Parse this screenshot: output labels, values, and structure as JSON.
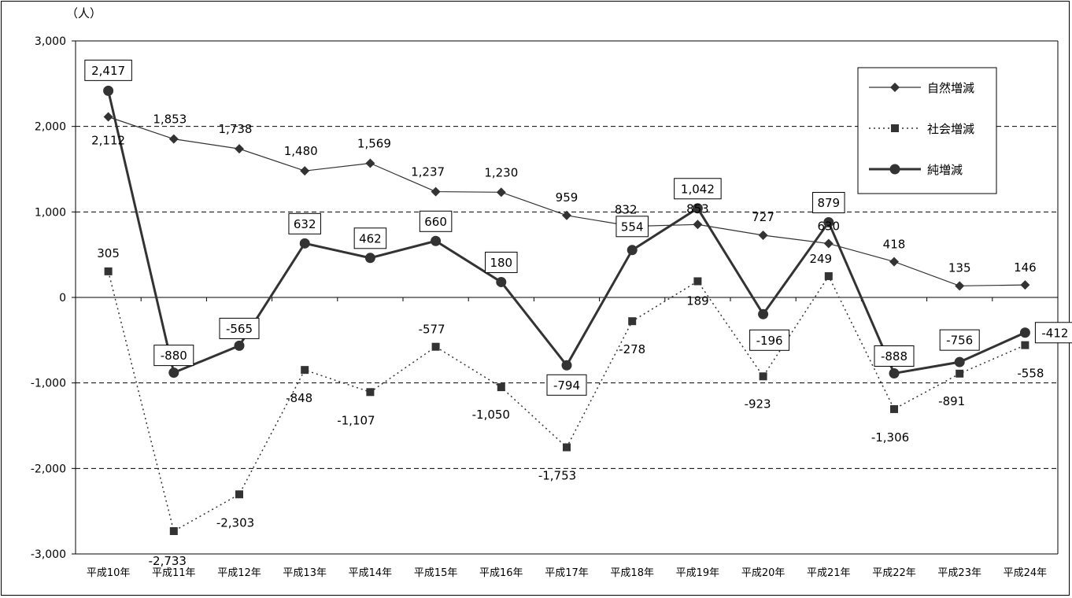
{
  "chart_data": {
    "type": "line",
    "unit_label": "（人）",
    "categories": [
      "平成10年",
      "平成11年",
      "平成12年",
      "平成13年",
      "平成14年",
      "平成15年",
      "平成16年",
      "平成17年",
      "平成18年",
      "平成19年",
      "平成20年",
      "平成21年",
      "平成22年",
      "平成23年",
      "平成24年"
    ],
    "ylim": [
      -3000,
      3000
    ],
    "yticks": [
      "3,000",
      "2,000",
      "1,000",
      "0",
      "-1,000",
      "-2,000",
      "-3,000"
    ],
    "ytick_values": [
      3000,
      2000,
      1000,
      0,
      -1000,
      -2000,
      -3000
    ],
    "grid": "dashed horizontal",
    "legend_position": "top-right",
    "series": [
      {
        "name": "自然増減",
        "style": "solid-thin",
        "marker": "diamond",
        "color": "#333333",
        "values": [
          2112,
          1853,
          1738,
          1480,
          1569,
          1237,
          1230,
          959,
          832,
          853,
          727,
          630,
          418,
          135,
          146
        ],
        "labels": [
          "2,112",
          "1,853",
          "1,738",
          "1,480",
          "1,569",
          "1,237",
          "1,230",
          "959",
          "832",
          "853",
          "727",
          "630",
          "418",
          "135",
          "146"
        ]
      },
      {
        "name": "社会増減",
        "style": "dotted",
        "marker": "square",
        "color": "#333333",
        "values": [
          305,
          -2733,
          -2303,
          -848,
          -1107,
          -577,
          -1050,
          -1753,
          -278,
          189,
          -923,
          249,
          -1306,
          -891,
          -558
        ],
        "labels": [
          "305",
          "-2,733",
          "-2,303",
          "-848",
          "-1,107",
          "-577",
          "-1,050",
          "-1,753",
          "-278",
          "189",
          "-923",
          "249",
          "-1,306",
          "-891",
          "-558"
        ]
      },
      {
        "name": "純増減",
        "style": "solid-thick",
        "marker": "circle",
        "color": "#333333",
        "values": [
          2417,
          -880,
          -565,
          632,
          462,
          660,
          180,
          -794,
          554,
          1042,
          -196,
          879,
          -888,
          -756,
          -412
        ],
        "labels": [
          "2,417",
          "-880",
          "-565",
          "632",
          "462",
          "660",
          "180",
          "-794",
          "554",
          "1,042",
          "-196",
          "879",
          "-888",
          "-756",
          "-412"
        ]
      }
    ]
  }
}
